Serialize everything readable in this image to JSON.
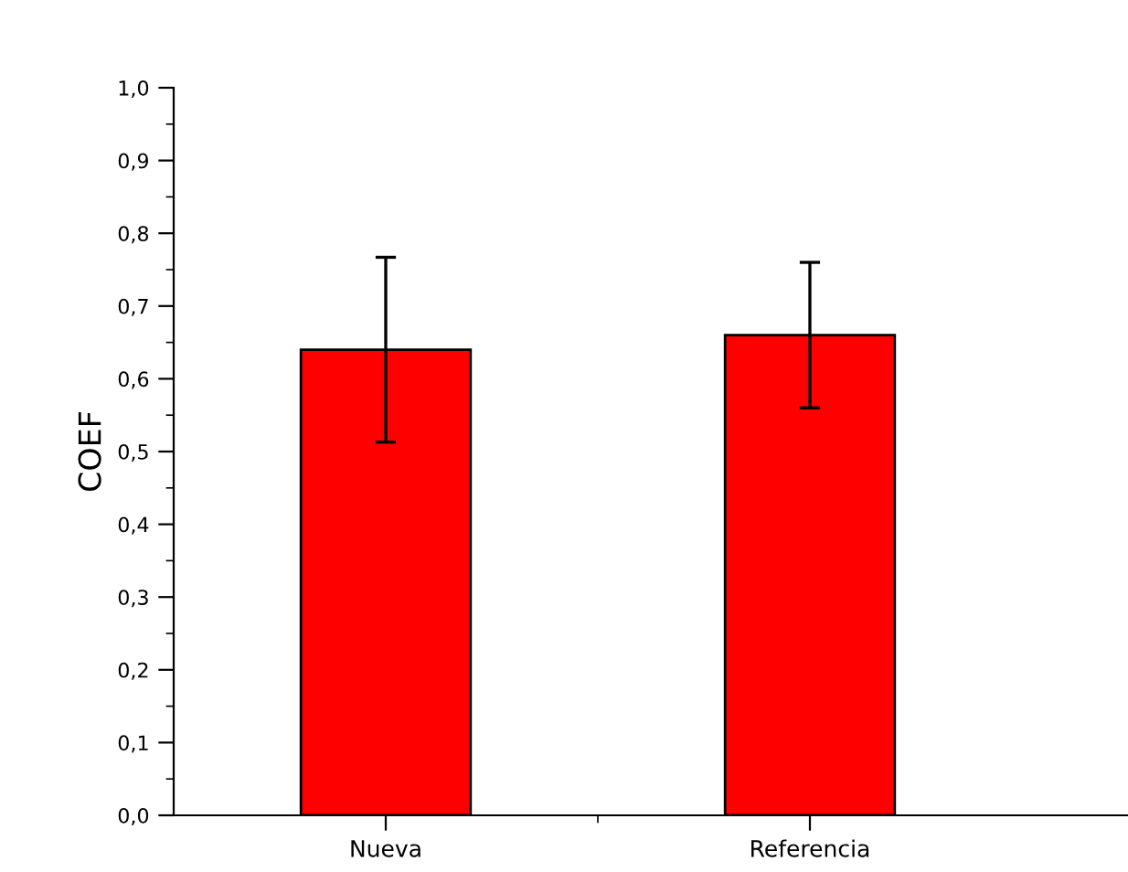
{
  "chart_data": {
    "type": "bar",
    "ylabel": "COEF",
    "categories": [
      "Nueva",
      "Referencia"
    ],
    "values": [
      0.64,
      0.66
    ],
    "errors": [
      0.127,
      0.1
    ],
    "color": "#ff0000",
    "ylim": [
      0,
      1.0
    ],
    "yticks": [
      {
        "value": 0,
        "label": "0,0"
      },
      {
        "value": 0.1,
        "label": "0,1"
      },
      {
        "value": 0.2,
        "label": "0,2"
      },
      {
        "value": 0.3,
        "label": "0,3"
      },
      {
        "value": 0.4,
        "label": "0,4"
      },
      {
        "value": 0.5,
        "label": "0,5"
      },
      {
        "value": 0.6,
        "label": "0,6"
      },
      {
        "value": 0.7,
        "label": "0,7"
      },
      {
        "value": 0.8,
        "label": "0,8"
      },
      {
        "value": 0.9,
        "label": "0,9"
      },
      {
        "value": 1.0,
        "label": "1,0"
      }
    ],
    "grid": false
  }
}
